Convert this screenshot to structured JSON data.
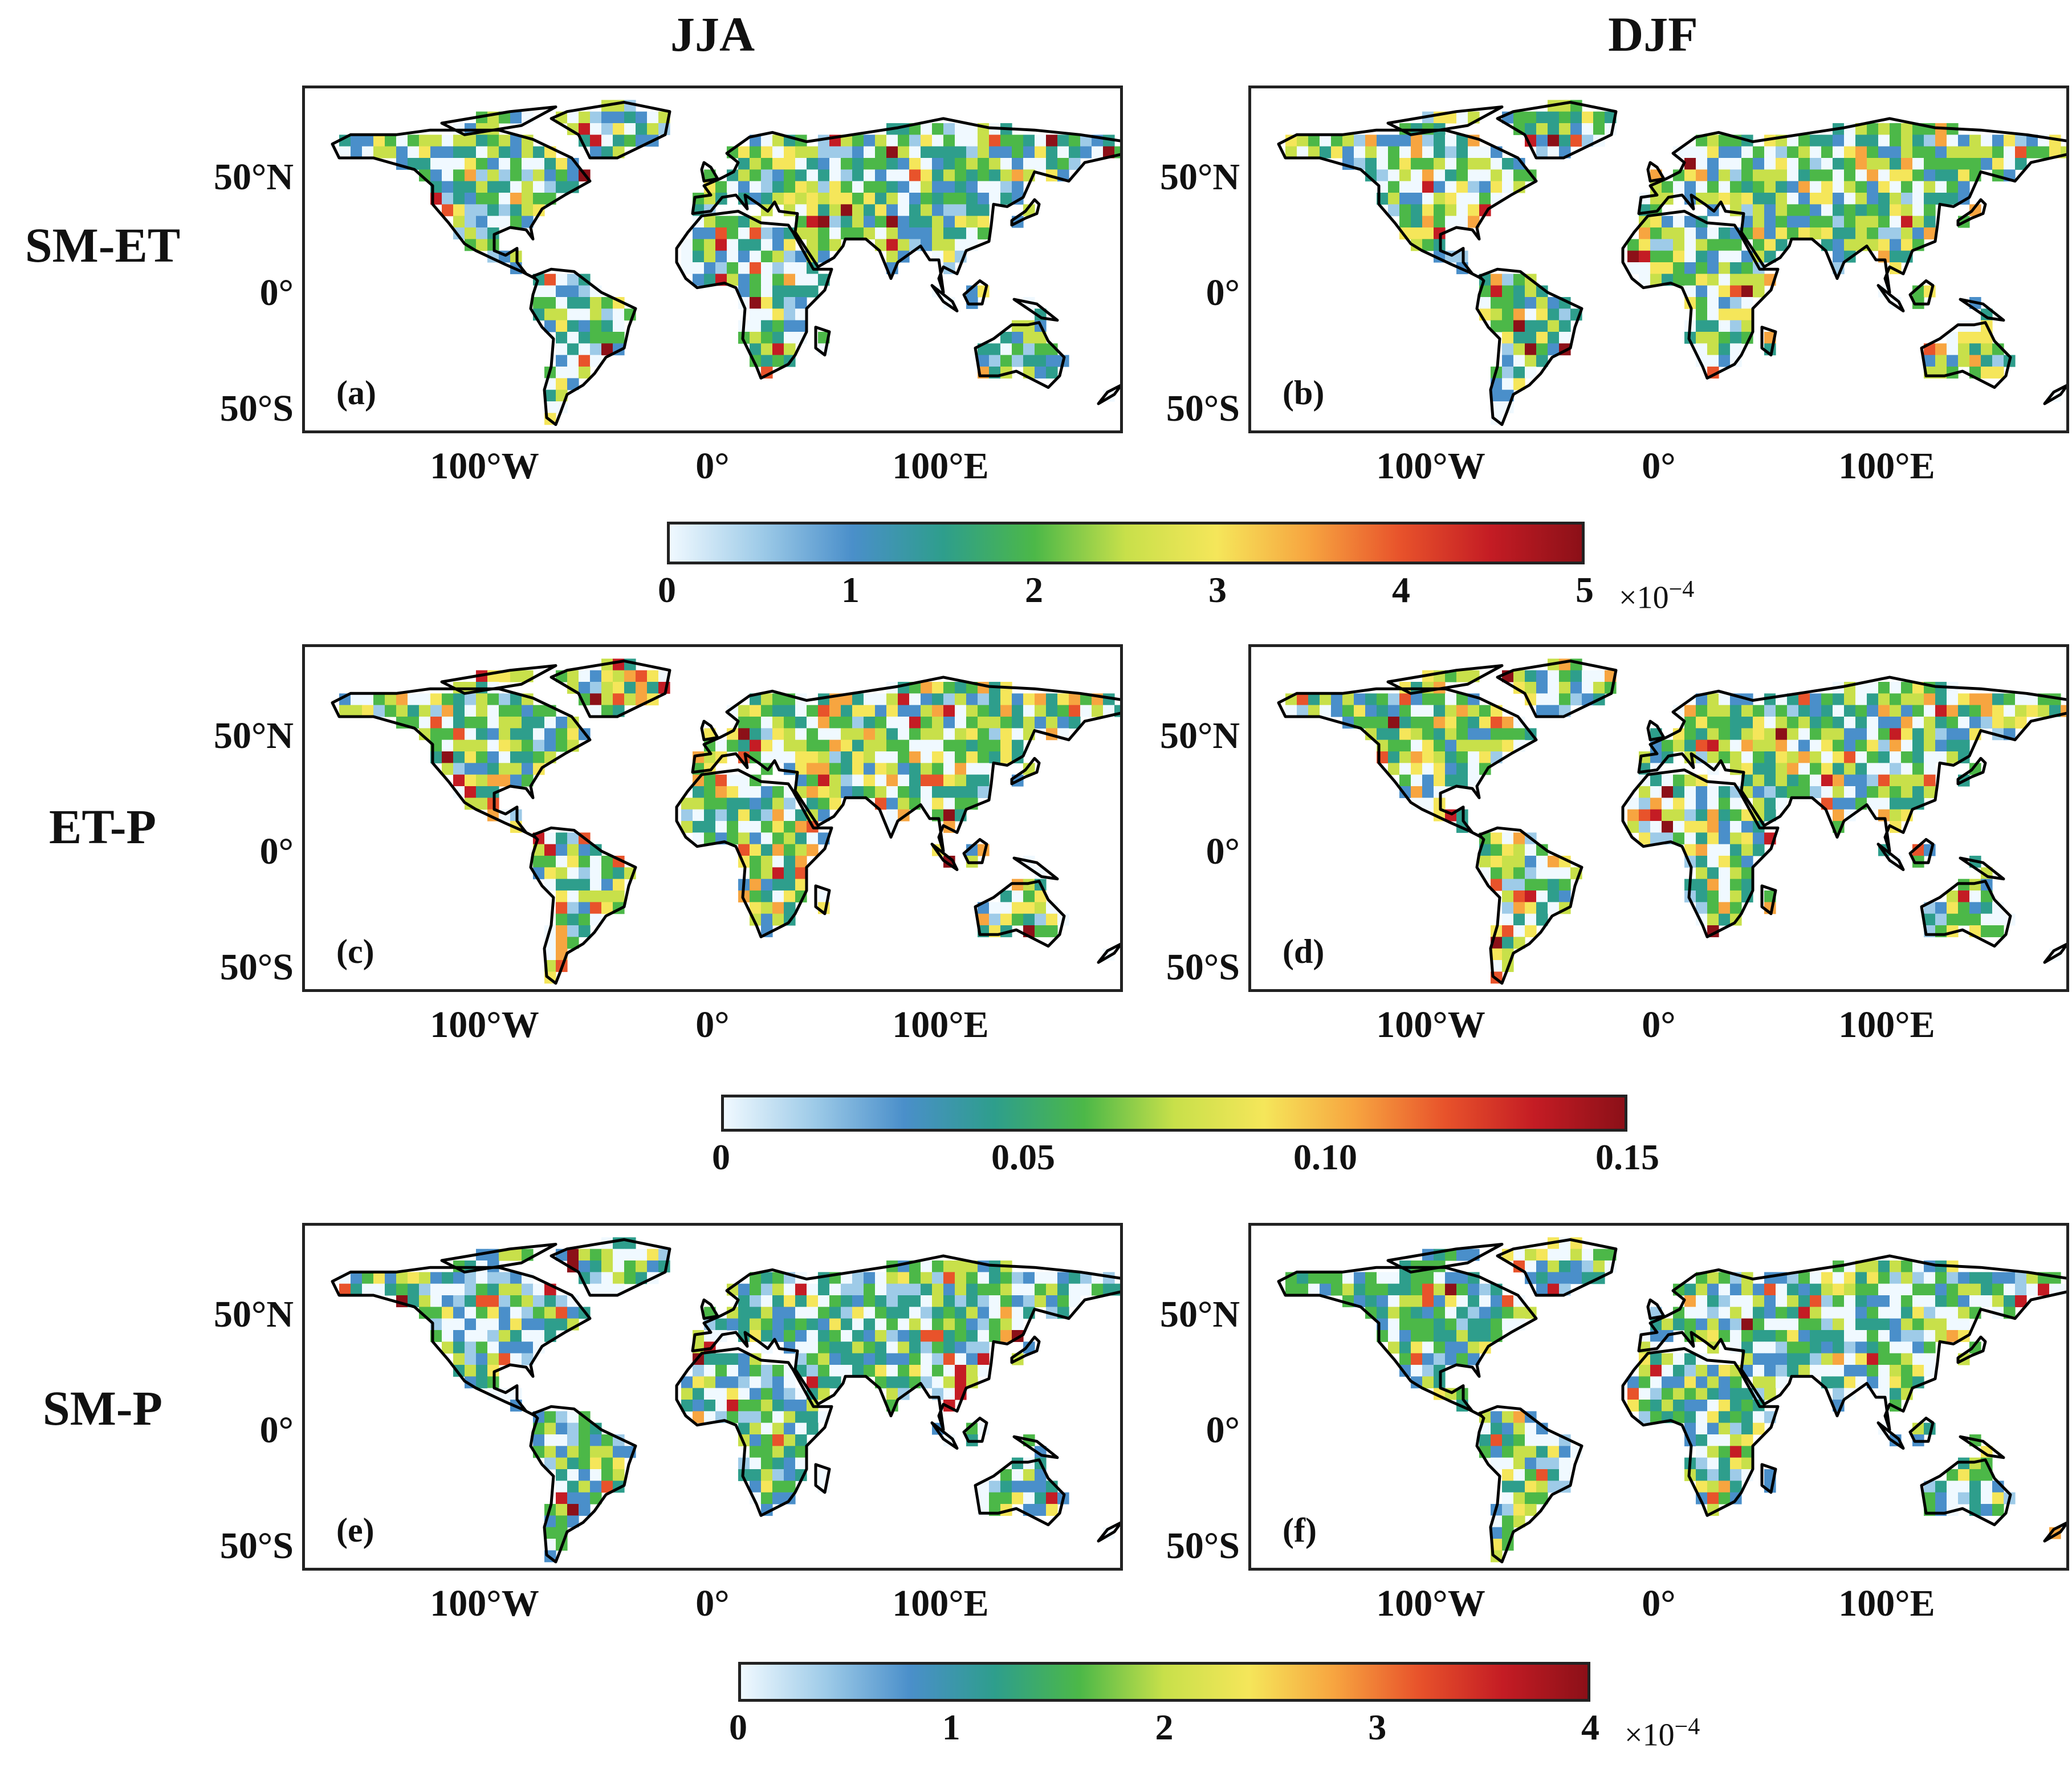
{
  "columns": [
    "JJA",
    "DJF"
  ],
  "rows": [
    "SM-ET",
    "ET-P",
    "SM-P"
  ],
  "lat_ticks": [
    "50°N",
    "0°",
    "50°S"
  ],
  "lon_ticks": [
    "100°W",
    "0°",
    "100°E"
  ],
  "panels": [
    {
      "label": "(a)",
      "row": "SM-ET",
      "season": "JJA",
      "map": "global land-coupling field"
    },
    {
      "label": "(b)",
      "row": "SM-ET",
      "season": "DJF",
      "map": "global land-coupling field"
    },
    {
      "label": "(c)",
      "row": "ET-P",
      "season": "JJA",
      "map": "global land-coupling field"
    },
    {
      "label": "(d)",
      "row": "ET-P",
      "season": "DJF",
      "map": "global land-coupling field"
    },
    {
      "label": "(e)",
      "row": "SM-P",
      "season": "JJA",
      "map": "global land-coupling field"
    },
    {
      "label": "(f)",
      "row": "SM-P",
      "season": "DJF",
      "map": "global land-coupling field"
    }
  ],
  "colorbars": [
    {
      "ticks": [
        "0",
        "1",
        "2",
        "3",
        "4",
        "5"
      ],
      "multiplier": "×10",
      "exponent": "−4"
    },
    {
      "ticks": [
        "0",
        "0.05",
        "0.10",
        "0.15"
      ],
      "multiplier": "",
      "exponent": ""
    },
    {
      "ticks": [
        "0",
        "1",
        "2",
        "3",
        "4"
      ],
      "multiplier": "×10",
      "exponent": "−4"
    }
  ],
  "colormap": [
    "#f0f9ff",
    "#9ecbe8",
    "#4a8fca",
    "#2e9e8c",
    "#4cb848",
    "#c8e04a",
    "#f5e65a",
    "#f7a540",
    "#e8532b",
    "#c41c24",
    "#8c1018"
  ]
}
